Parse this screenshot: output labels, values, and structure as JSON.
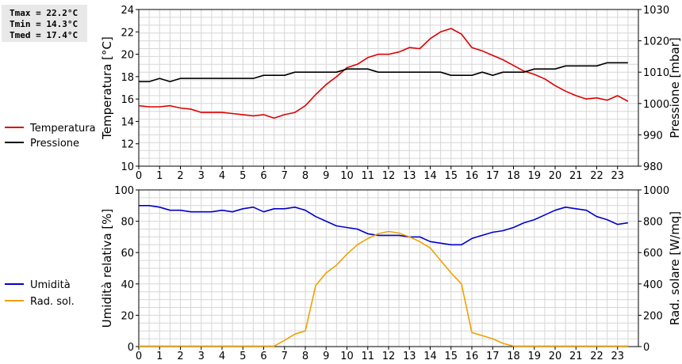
{
  "stats": {
    "tmax": "Tmax = 22.2°C",
    "tmin": "Tmin = 14.3°C",
    "tmed": "Tmed = 17.4°C"
  },
  "chart_data": [
    {
      "type": "line",
      "xlim": [
        0,
        24
      ],
      "x_ticks": [
        "0",
        "1",
        "2",
        "3",
        "4",
        "5",
        "6",
        "7",
        "8",
        "9",
        "10",
        "11",
        "12",
        "13",
        "14",
        "15",
        "16",
        "17",
        "18",
        "19",
        "20",
        "21",
        "22",
        "23"
      ],
      "ylabel": "Temperatura [°C]",
      "ylim": [
        10,
        24
      ],
      "y_ticks": [
        "10",
        "12",
        "14",
        "16",
        "18",
        "20",
        "22",
        "24"
      ],
      "y2label": "Pressione [mbar]",
      "y2lim": [
        980,
        1030
      ],
      "y2_ticks": [
        "980",
        "990",
        "1000",
        "1010",
        "1020",
        "1030"
      ],
      "grid": true,
      "legend_position": "left",
      "series": [
        {
          "name": "Temperatura",
          "color": "#dd0000",
          "axis": "left",
          "x": [
            0,
            0.5,
            1,
            1.5,
            2,
            2.5,
            3,
            3.5,
            4,
            4.5,
            5,
            5.5,
            6,
            6.5,
            7,
            7.5,
            8,
            8.5,
            9,
            9.5,
            10,
            10.5,
            11,
            11.5,
            12,
            12.5,
            13,
            13.5,
            14,
            14.5,
            15,
            15.5,
            16,
            16.5,
            17,
            17.5,
            18,
            18.5,
            19,
            19.5,
            20,
            20.5,
            21,
            21.5,
            22,
            22.5,
            23,
            23.5
          ],
          "y": [
            15.4,
            15.3,
            15.3,
            15.4,
            15.2,
            15.1,
            14.8,
            14.8,
            14.8,
            14.7,
            14.6,
            14.5,
            14.6,
            14.3,
            14.6,
            14.8,
            15.4,
            16.4,
            17.3,
            18.0,
            18.8,
            19.1,
            19.7,
            20.0,
            20.0,
            20.2,
            20.6,
            20.5,
            21.4,
            22.0,
            22.3,
            21.8,
            20.6,
            20.3,
            19.9,
            19.5,
            19.0,
            18.5,
            18.2,
            17.8,
            17.2,
            16.7,
            16.3,
            16.0,
            16.1,
            15.9,
            16.3,
            15.8
          ]
        },
        {
          "name": "Pressione",
          "color": "#000000",
          "axis": "right",
          "x": [
            0,
            0.5,
            1,
            1.5,
            2,
            2.5,
            3,
            3.5,
            4,
            4.5,
            5,
            5.5,
            6,
            6.5,
            7,
            7.5,
            8,
            8.5,
            9,
            9.5,
            10,
            10.5,
            11,
            11.5,
            12,
            12.5,
            13,
            13.5,
            14,
            14.5,
            15,
            15.5,
            16,
            16.5,
            17,
            17.5,
            18,
            18.5,
            19,
            19.5,
            20,
            20.5,
            21,
            21.5,
            22,
            22.5,
            23,
            23.5
          ],
          "y": [
            1007,
            1007,
            1008,
            1007,
            1008,
            1008,
            1008,
            1008,
            1008,
            1008,
            1008,
            1008,
            1009,
            1009,
            1009,
            1010,
            1010,
            1010,
            1010,
            1010,
            1011,
            1011,
            1011,
            1010,
            1010,
            1010,
            1010,
            1010,
            1010,
            1010,
            1009,
            1009,
            1009,
            1010,
            1009,
            1010,
            1010,
            1010,
            1011,
            1011,
            1011,
            1012,
            1012,
            1012,
            1012,
            1013,
            1013,
            1013
          ]
        }
      ]
    },
    {
      "type": "line",
      "xlim": [
        0,
        24
      ],
      "x_ticks": [
        "0",
        "1",
        "2",
        "3",
        "4",
        "5",
        "6",
        "7",
        "8",
        "9",
        "10",
        "11",
        "12",
        "13",
        "14",
        "15",
        "16",
        "17",
        "18",
        "19",
        "20",
        "21",
        "22",
        "23"
      ],
      "ylabel": "Umidità relativa [%]",
      "ylim": [
        0,
        100
      ],
      "y_ticks": [
        "0",
        "20",
        "40",
        "60",
        "80",
        "100"
      ],
      "y2label": "Rad. solare [W/mq]",
      "y2lim": [
        0,
        1000
      ],
      "y2_ticks": [
        "0",
        "200",
        "400",
        "600",
        "800",
        "1000"
      ],
      "grid": true,
      "legend_position": "left",
      "series": [
        {
          "name": "Umidità",
          "color": "#0000cc",
          "axis": "left",
          "x": [
            0,
            0.5,
            1,
            1.5,
            2,
            2.5,
            3,
            3.5,
            4,
            4.5,
            5,
            5.5,
            6,
            6.5,
            7,
            7.5,
            8,
            8.5,
            9,
            9.5,
            10,
            10.5,
            11,
            11.5,
            12,
            12.5,
            13,
            13.5,
            14,
            14.5,
            15,
            15.5,
            16,
            16.5,
            17,
            17.5,
            18,
            18.5,
            19,
            19.5,
            20,
            20.5,
            21,
            21.5,
            22,
            22.5,
            23,
            23.5
          ],
          "y": [
            90,
            90,
            89,
            87,
            87,
            86,
            86,
            86,
            87,
            86,
            88,
            89,
            86,
            88,
            88,
            89,
            87,
            83,
            80,
            77,
            76,
            75,
            72,
            71,
            71,
            71,
            70,
            70,
            67,
            66,
            65,
            65,
            69,
            71,
            73,
            74,
            76,
            79,
            81,
            84,
            87,
            89,
            88,
            87,
            83,
            81,
            78,
            79
          ]
        },
        {
          "name": "Rad. sol.",
          "color": "#f0a000",
          "axis": "right",
          "x": [
            0,
            0.5,
            1,
            1.5,
            2,
            2.5,
            3,
            3.5,
            4,
            4.5,
            5,
            5.5,
            6,
            6.5,
            7,
            7.5,
            8,
            8.5,
            9,
            9.5,
            10,
            10.5,
            11,
            11.5,
            12,
            12.5,
            13,
            13.5,
            14,
            14.5,
            15,
            15.5,
            16,
            16.5,
            17,
            17.5,
            18,
            18.5,
            19,
            19.5,
            20,
            20.5,
            21,
            21.5,
            22,
            22.5,
            23,
            23.5
          ],
          "y": [
            3,
            3,
            3,
            3,
            3,
            3,
            3,
            3,
            3,
            3,
            3,
            3,
            3,
            3,
            40,
            80,
            100,
            390,
            470,
            520,
            590,
            650,
            690,
            720,
            735,
            725,
            700,
            670,
            630,
            550,
            470,
            400,
            90,
            70,
            50,
            20,
            3,
            3,
            3,
            3,
            3,
            3,
            3,
            3,
            3,
            3,
            3,
            3
          ]
        }
      ]
    }
  ]
}
